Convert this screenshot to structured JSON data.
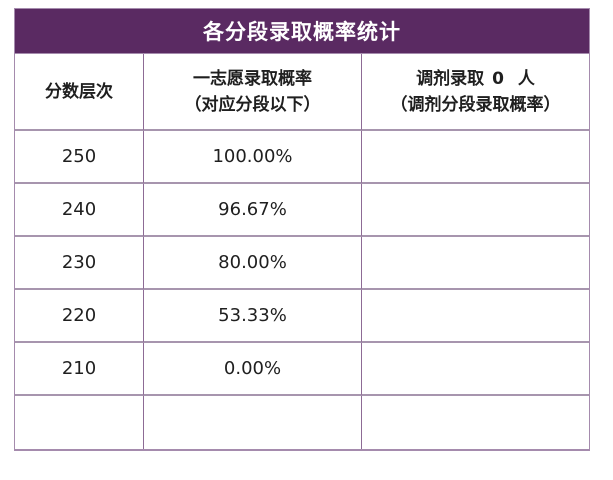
{
  "table": {
    "title": "各分段录取概率统计",
    "header": {
      "col1": "分数层次",
      "col2_line1": "一志愿录取概率",
      "col2_line2": "（对应分段以下）",
      "col3_prefix": "调剂录取",
      "col3_count": "0",
      "col3_suffix": "人",
      "col3_line2": "（调剂分段录取概率）"
    },
    "rows": [
      {
        "score": "250",
        "first_choice_prob": "100.00%",
        "transfer_prob": ""
      },
      {
        "score": "240",
        "first_choice_prob": "96.67%",
        "transfer_prob": ""
      },
      {
        "score": "230",
        "first_choice_prob": "80.00%",
        "transfer_prob": ""
      },
      {
        "score": "220",
        "first_choice_prob": "53.33%",
        "transfer_prob": ""
      },
      {
        "score": "210",
        "first_choice_prob": "0.00%",
        "transfer_prob": ""
      },
      {
        "score": "",
        "first_choice_prob": "",
        "transfer_prob": ""
      }
    ]
  },
  "colors": {
    "title_background": "#5a2a62",
    "title_text": "#ffffff",
    "horizontal_border": "#a795ae",
    "vertical_border": "#8d6b95",
    "outer_border": "#a58bad",
    "body_text": "#1f1f1f",
    "page_background": "#ffffff"
  },
  "chart_data": {
    "type": "table",
    "title": "各分段录取概率统计",
    "columns": [
      "分数层次",
      "一志愿录取概率（对应分段以下）",
      "调剂录取 0 人（调剂分段录取概率）"
    ],
    "rows": [
      [
        "250",
        "100.00%",
        ""
      ],
      [
        "240",
        "96.67%",
        ""
      ],
      [
        "230",
        "80.00%",
        ""
      ],
      [
        "220",
        "53.33%",
        ""
      ],
      [
        "210",
        "0.00%",
        ""
      ],
      [
        "",
        "",
        ""
      ]
    ]
  }
}
